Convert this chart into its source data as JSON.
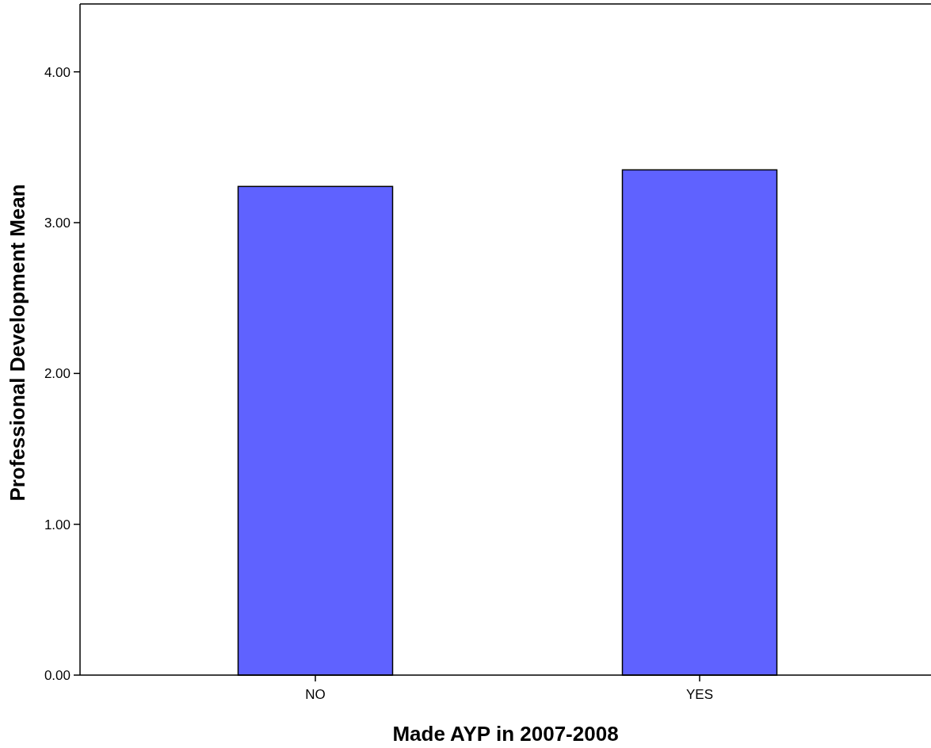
{
  "chart_data": {
    "type": "bar",
    "xlabel": "Made AYP in 2007-2008",
    "ylabel": "Professional Development Mean",
    "categories": [
      "NO",
      "YES"
    ],
    "values": [
      3.24,
      3.35
    ],
    "color": "#5f62ff",
    "ylim": [
      0,
      4.45
    ],
    "yticks": [
      {
        "value": 0,
        "label": "0.00"
      },
      {
        "value": 1,
        "label": "1.00"
      },
      {
        "value": 2,
        "label": "2.00"
      },
      {
        "value": 3,
        "label": "3.00"
      },
      {
        "value": 4,
        "label": "4.00"
      }
    ],
    "grid": false
  }
}
